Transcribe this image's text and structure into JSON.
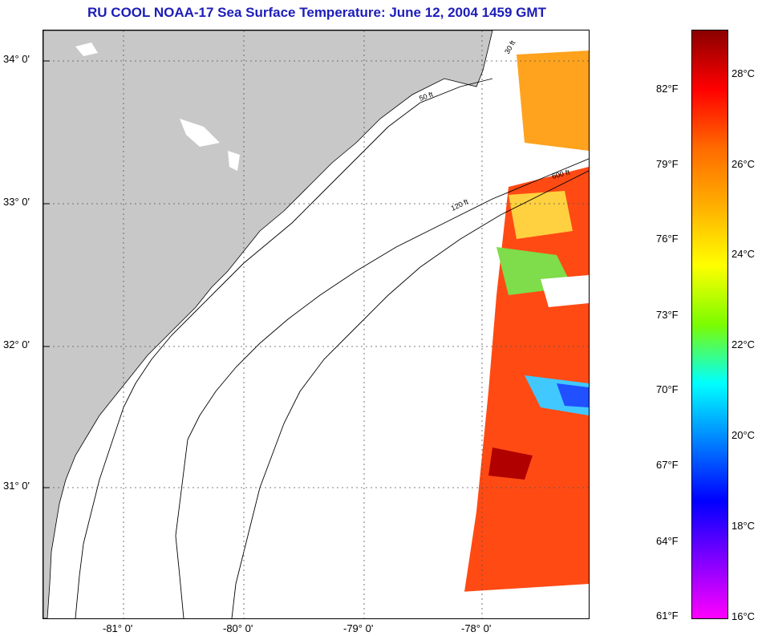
{
  "title": "RU COOL  NOAA-17  Sea Surface Temperature:  June 12, 2004 1459 GMT",
  "map": {
    "lat_labels": [
      "34° 0'",
      "33° 0'",
      "32° 0'",
      "31° 0'"
    ],
    "lon_labels": [
      "-81° 0'",
      "-80° 0'",
      "-79° 0'",
      "-78° 0'"
    ],
    "contour_labels": [
      "30 ft",
      "50 ft",
      "120 ft",
      "600 ft"
    ],
    "colors": {
      "land": "#c8c8c8",
      "contour": "#000000",
      "grid": "#555555"
    }
  },
  "colorbar": {
    "fahrenheit": [
      "82°F",
      "79°F",
      "76°F",
      "73°F",
      "70°F",
      "67°F",
      "64°F",
      "61°F"
    ],
    "celsius": [
      "28°C",
      "26°C",
      "24°C",
      "22°C",
      "20°C",
      "18°C",
      "16°C"
    ],
    "gradient": [
      "#8b0000",
      "#ff0000",
      "#ff6a00",
      "#ffb000",
      "#ffff00",
      "#7cfc00",
      "#00ffff",
      "#0080ff",
      "#0000ff",
      "#8000ff",
      "#ff00ff"
    ]
  }
}
